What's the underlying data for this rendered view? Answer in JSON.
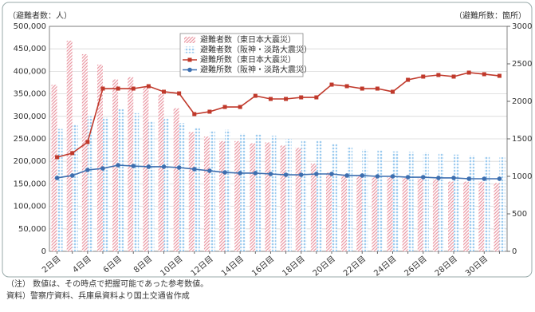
{
  "chart_data": {
    "type": "bar-line",
    "y_label": "（避難者数：人）",
    "y2_label": "（避難所数：箇所）",
    "categories": [
      "2日目",
      null,
      "4日目",
      null,
      "6日目",
      null,
      "8日目",
      null,
      "10日目",
      null,
      "12日目",
      null,
      "14日目",
      null,
      "16日目",
      null,
      "18日目",
      null,
      "20日目",
      null,
      "22日目",
      null,
      "24日目",
      null,
      "26日目",
      null,
      "28日目",
      null,
      "30日目",
      null
    ],
    "ylim": [
      0,
      500000
    ],
    "yticks": [
      0,
      {
        "value": 50000,
        "label": "50,000"
      },
      {
        "value": 100000,
        "label": "100,000"
      },
      {
        "value": 150000,
        "label": "150,000"
      },
      {
        "value": 200000,
        "label": "200,000"
      },
      {
        "value": 250000,
        "label": "250,000"
      },
      {
        "value": 300000,
        "label": "300,000"
      },
      {
        "value": 350000,
        "label": "350,000"
      },
      {
        "value": 400000,
        "label": "400,000"
      },
      {
        "value": 450000,
        "label": "450,000"
      },
      {
        "value": 500000,
        "label": "500,000"
      }
    ],
    "y2lim": [
      0,
      3000
    ],
    "y2ticks": [
      0,
      500,
      1000,
      1500,
      2000,
      2500,
      3000
    ],
    "series": [
      {
        "name": "避難者数（東日本大震災）",
        "color": "#eb9aa5",
        "kind": "bar",
        "values": [
          370000,
          468000,
          438000,
          415000,
          382000,
          387000,
          365000,
          350000,
          318000,
          265000,
          255000,
          245000,
          245000,
          240000,
          242000,
          235000,
          230000,
          195000,
          175000,
          170000,
          168000,
          165000,
          165000,
          163000,
          162000,
          160000,
          155000,
          155000,
          155000,
          152000
        ]
      },
      {
        "name": "避難者数（阪神・淡路大震災）",
        "color": "#9ccbef",
        "kind": "bar",
        "values": [
          272000,
          282000,
          300000,
          298000,
          316000,
          307000,
          290000,
          295000,
          285000,
          275000,
          268000,
          270000,
          262000,
          260000,
          257000,
          250000,
          247000,
          246000,
          240000,
          231000,
          227000,
          225000,
          222000,
          221000,
          220000,
          218000,
          215000,
          213000,
          211000,
          209000
        ]
      },
      {
        "name": "避難所数（東日本大震災）",
        "color": "#c0392b",
        "kind": "line",
        "marker": "square",
        "axis": "y2",
        "values": [
          1255,
          1310,
          1457,
          2170,
          2170,
          2170,
          2202,
          2128,
          2106,
          1830,
          1862,
          1925,
          1925,
          2074,
          2032,
          2032,
          2053,
          2053,
          2223,
          2202,
          2170,
          2170,
          2128,
          2287,
          2330,
          2351,
          2330,
          2383,
          2362,
          2340
        ]
      },
      {
        "name": "避難所数（阪神・淡路大震災）",
        "color": "#3d6fb0",
        "kind": "line",
        "marker": "circle",
        "axis": "y2",
        "values": [
          979,
          1011,
          1085,
          1106,
          1149,
          1138,
          1128,
          1128,
          1117,
          1096,
          1074,
          1053,
          1043,
          1043,
          1032,
          1021,
          1021,
          1032,
          1032,
          1011,
          1011,
          1000,
          1000,
          989,
          989,
          979,
          979,
          968,
          968,
          968
        ]
      }
    ]
  },
  "notes": [
    "（注） 数値は、その時点で把握可能であった参考数値。",
    "資料）警察庁資料、兵庫県資料より国土交通省作成"
  ]
}
